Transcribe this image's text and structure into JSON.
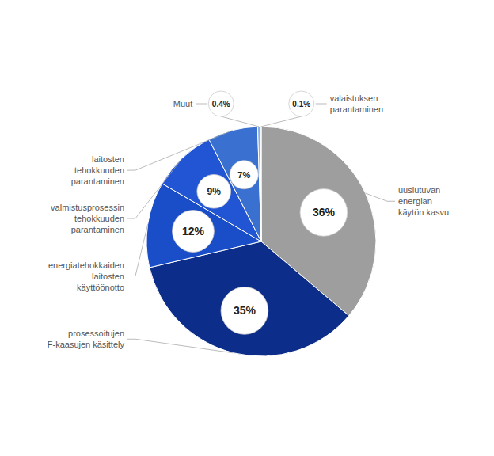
{
  "chart_data": {
    "type": "pie",
    "categories": [
      "uusiutuvan\nenergian\nkäytön kasvu",
      "prosessoitujen\nF-kaasujen käsittely",
      "energiatehokkaiden\nlaitosten\nkäyttöönotto",
      "valmistusprosessin\ntehokkuuden\nparantaminen",
      "laitosten\ntehokkuuden\nparantaminen",
      "Muut",
      "valaistuksen\nparantaminen"
    ],
    "values": [
      36,
      35,
      12,
      9,
      7,
      0.4,
      0.1
    ],
    "value_labels": [
      "36%",
      "35%",
      "12%",
      "9%",
      "7%",
      "0.4%",
      "0.1%"
    ],
    "colors": [
      "#9e9e9e",
      "#0d2d8a",
      "#1a4ec8",
      "#2255d4",
      "#3a70d0",
      "#8ab0e0",
      "#b8cce8"
    ],
    "data_labels": true
  }
}
